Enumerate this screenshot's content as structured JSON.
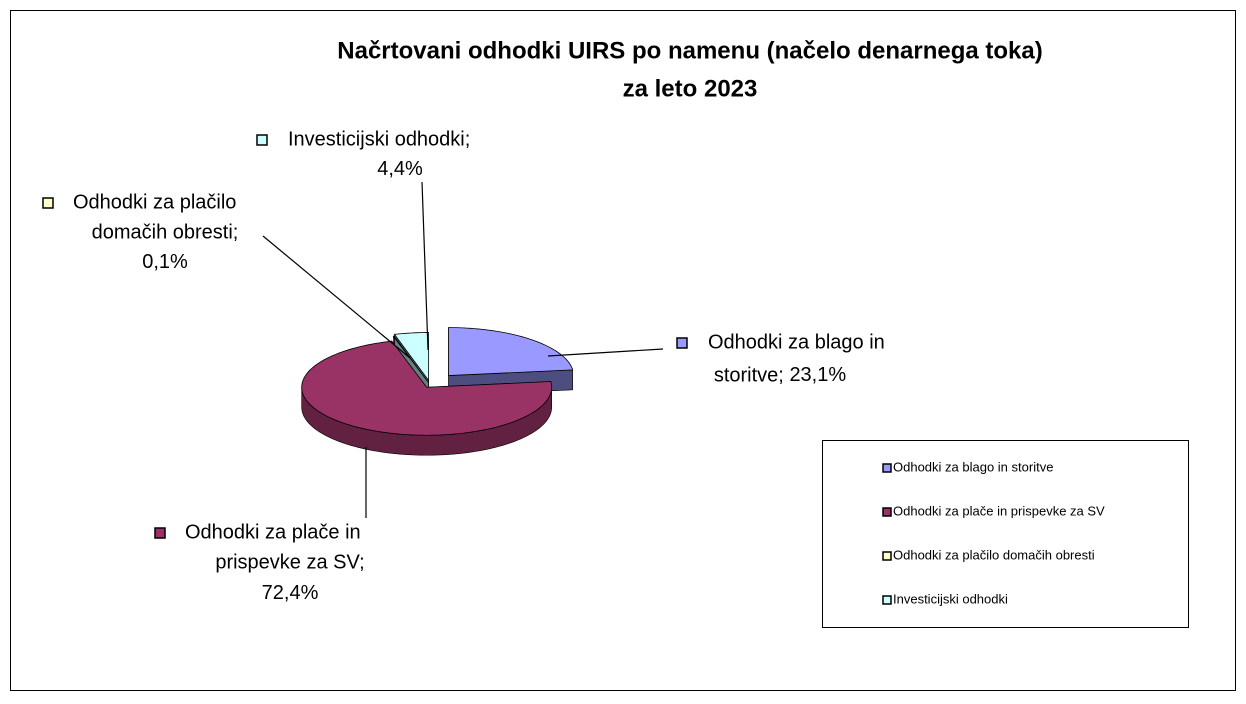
{
  "chart_data": {
    "type": "pie",
    "title": [
      "Načrtovani odhodki UIRS po namenu (načelo denarnega toka)",
      "za leto 2023"
    ],
    "categories": [
      "Odhodki za blago in storitve",
      "Odhodki za plače in prispevke za SV",
      "Odhodki za plačilo domačih obresti",
      "Investicijski odhodki"
    ],
    "values": [
      23.1,
      72.4,
      0.1,
      4.4
    ],
    "value_labels": [
      "23,1%",
      "72,4%",
      "0,1%",
      "4,4%"
    ],
    "colors": [
      "#9999ff",
      "#993366",
      "#ffffcc",
      "#ccffff"
    ],
    "legend": "right"
  }
}
